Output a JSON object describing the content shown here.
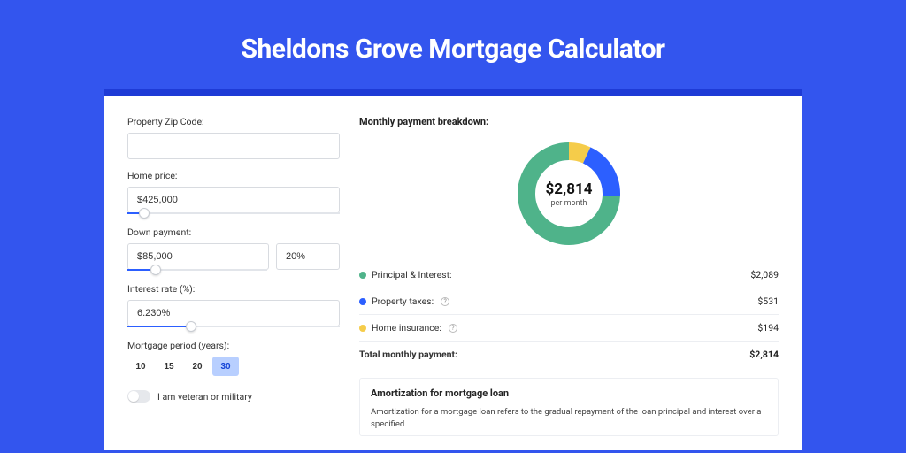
{
  "page": {
    "title": "Sheldons Grove Mortgage Calculator",
    "bg_color": "#3355ee",
    "card_shadow_color": "#1e3bd6",
    "card_bg": "#ffffff"
  },
  "form": {
    "zip": {
      "label": "Property Zip Code:",
      "value": ""
    },
    "home_price": {
      "label": "Home price:",
      "value": "$425,000",
      "slider_pct": 8
    },
    "down_payment": {
      "label": "Down payment:",
      "value": "$85,000",
      "pct_value": "20%",
      "slider_pct": 20
    },
    "interest_rate": {
      "label": "Interest rate (%):",
      "value": "6.230%",
      "slider_pct": 30
    },
    "period": {
      "label": "Mortgage period (years):",
      "options": [
        "10",
        "15",
        "20",
        "30"
      ],
      "selected": "30"
    },
    "veteran": {
      "label": "I am veteran or military",
      "checked": false
    }
  },
  "breakdown": {
    "title": "Monthly payment breakdown:",
    "center_value": "$2,814",
    "center_sub": "per month",
    "items": [
      {
        "label": "Principal & Interest:",
        "value": "$2,089",
        "color": "#4fb38a",
        "pct": 74.2,
        "help": false
      },
      {
        "label": "Property taxes:",
        "value": "$531",
        "color": "#2c5fff",
        "pct": 18.9,
        "help": true
      },
      {
        "label": "Home insurance:",
        "value": "$194",
        "color": "#f5cc4a",
        "pct": 6.9,
        "help": true
      }
    ],
    "total": {
      "label": "Total monthly payment:",
      "value": "$2,814"
    }
  },
  "amortization": {
    "title": "Amortization for mortgage loan",
    "text": "Amortization for a mortgage loan refers to the gradual repayment of the loan principal and interest over a specified"
  },
  "donut": {
    "radius": 48,
    "stroke": 20,
    "bg": "#ffffff"
  }
}
